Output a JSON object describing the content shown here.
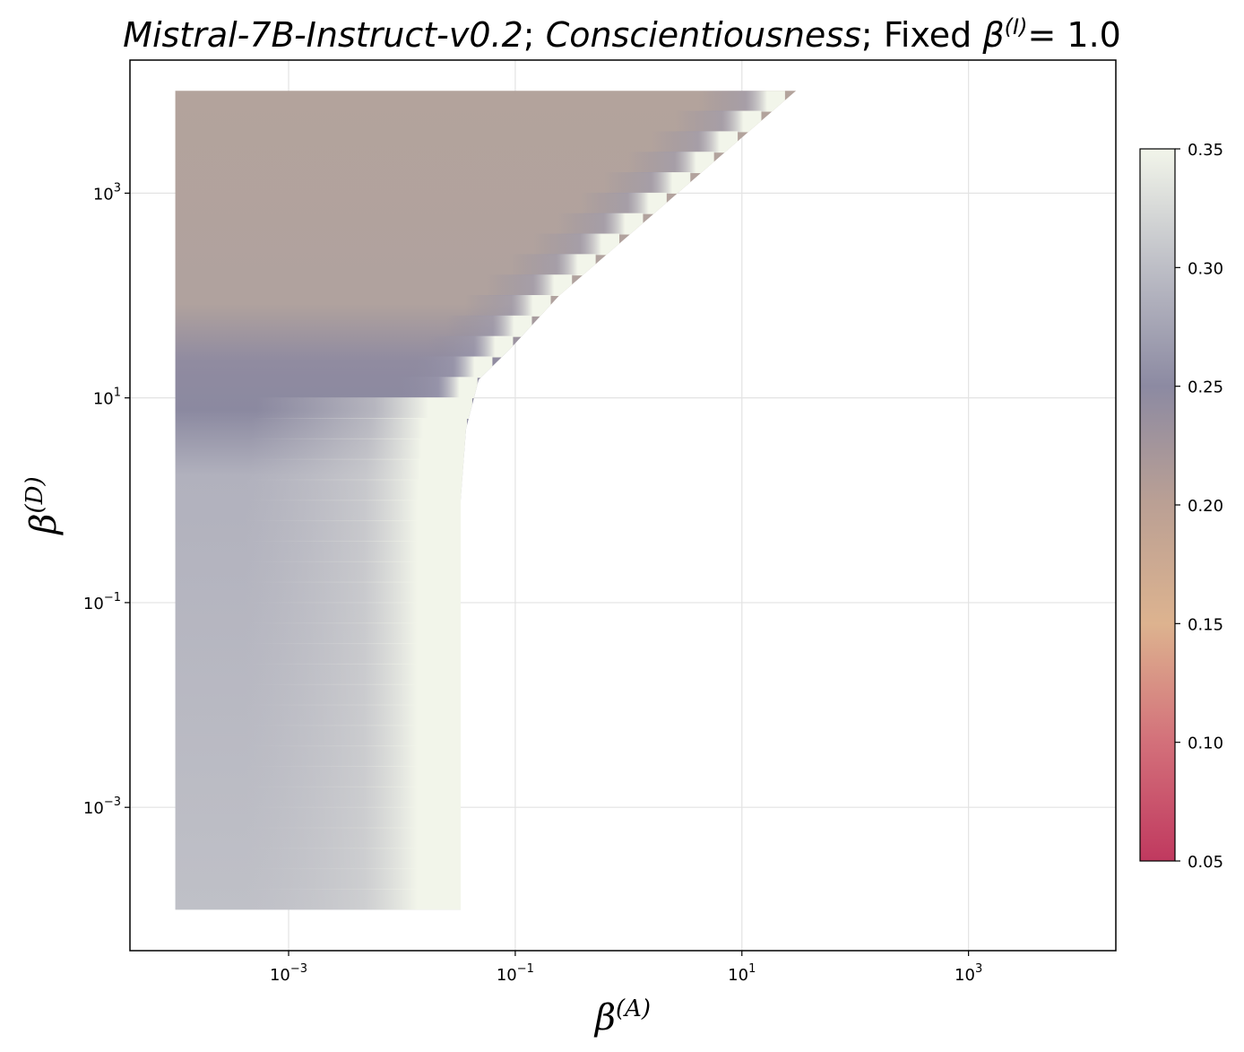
{
  "chart_data": {
    "type": "heatmap",
    "title": {
      "model": "Mistral-7B-Instruct-v0.2",
      "trait": "Conscientiousness",
      "fixed_label": "Fixed",
      "fixed_param": "β",
      "fixed_sup": "(I)",
      "fixed_value": "= 1.0"
    },
    "xlabel": {
      "base": "β",
      "sup": "(A)"
    },
    "ylabel": {
      "base": "β",
      "sup": "(D)"
    },
    "x_scale": "log",
    "y_scale": "log",
    "xlim": [
      3.98e-05,
      19950
    ],
    "ylim": [
      3.98e-05,
      19950
    ],
    "x_ticks": [
      {
        "value": 0.001,
        "base": "10",
        "exp": "−3"
      },
      {
        "value": 0.1,
        "base": "10",
        "exp": "−1"
      },
      {
        "value": 10,
        "base": "10",
        "exp": "1"
      },
      {
        "value": 1000,
        "base": "10",
        "exp": "3"
      }
    ],
    "y_ticks": [
      {
        "value": 1000,
        "base": "10",
        "exp": "3"
      },
      {
        "value": 10,
        "base": "10",
        "exp": "1"
      },
      {
        "value": 0.1,
        "base": "10",
        "exp": "−1"
      },
      {
        "value": 0.001,
        "base": "10",
        "exp": "−3"
      }
    ],
    "grid": true,
    "data_region": {
      "x_min": 0.0001,
      "y_min": 0.0001,
      "y_max": 10000,
      "x_max_at_bottom": 0.033,
      "x_max_at_top": 30
    },
    "value_profile_left_column": [
      {
        "y": 10000,
        "value": 0.205
      },
      {
        "y": 100,
        "value": 0.21
      },
      {
        "y": 12,
        "value": 0.25
      },
      {
        "y": 1,
        "value": 0.285
      },
      {
        "y": 0.0001,
        "value": 0.29
      }
    ],
    "colorbar": {
      "min": 0.05,
      "max": 0.35,
      "ticks": [
        "0.05",
        "0.10",
        "0.15",
        "0.20",
        "0.25",
        "0.30",
        "0.35"
      ],
      "tick_values": [
        0.05,
        0.1,
        0.15,
        0.2,
        0.25,
        0.3,
        0.35
      ],
      "stops": [
        {
          "value": 0.05,
          "color": "#c0395f"
        },
        {
          "value": 0.1,
          "color": "#d3707a"
        },
        {
          "value": 0.15,
          "color": "#ddb38f"
        },
        {
          "value": 0.2,
          "color": "#bba094"
        },
        {
          "value": 0.25,
          "color": "#8c8aa2"
        },
        {
          "value": 0.3,
          "color": "#bdbec6"
        },
        {
          "value": 0.35,
          "color": "#f2f5ea"
        }
      ]
    }
  }
}
